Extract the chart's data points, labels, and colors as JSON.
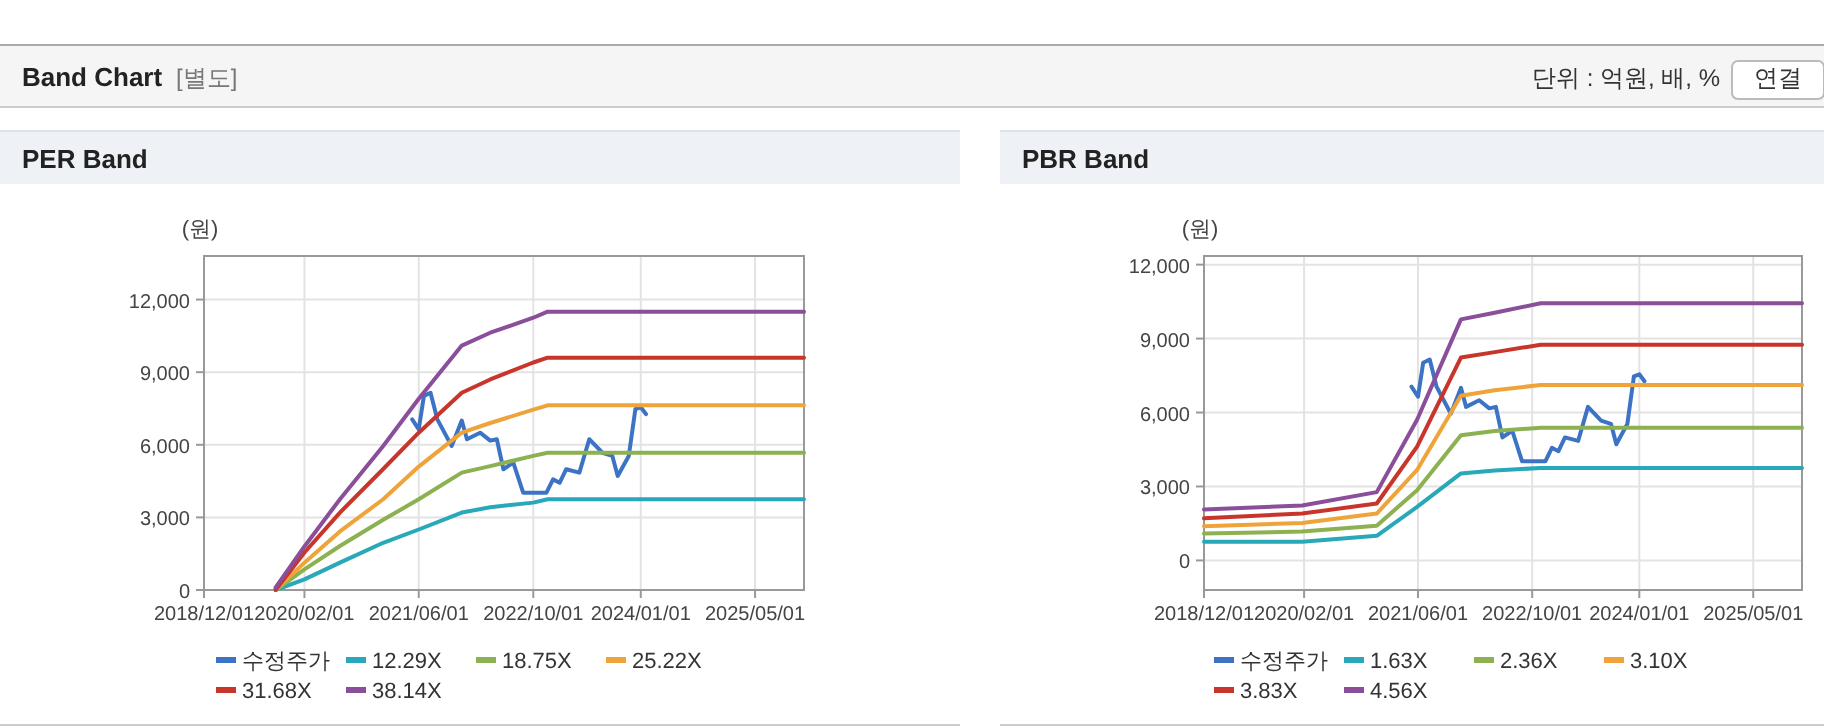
{
  "chart_data": [
    {
      "type": "line",
      "title": "PER Band",
      "ylabel": "(원)",
      "annotations": [
        "Band Chart",
        "[별도]",
        "단위 : 억원, 배, %",
        "연결"
      ],
      "legend": "bottom",
      "grid": true,
      "marker": "none",
      "line_style": "solid",
      "xlim": [
        "2018-12-01",
        "2025-11-25"
      ],
      "xticks": [
        {
          "value": "2018-12-01",
          "label": "2018/12/01"
        },
        {
          "value": "2020-02-01",
          "label": "2020/02/01"
        },
        {
          "value": "2021-06-01",
          "label": "2021/06/01"
        },
        {
          "value": "2022-10-01",
          "label": "2022/10/01"
        },
        {
          "value": "2024-01-01",
          "label": "2024/01/01"
        },
        {
          "value": "2025-05-01",
          "label": "2025/05/01"
        }
      ],
      "ylim": [
        0,
        13800
      ],
      "yticks": [
        {
          "value": 0,
          "label": "0"
        },
        {
          "value": 3000,
          "label": "3,000"
        },
        {
          "value": 6000,
          "label": "6,000"
        },
        {
          "value": 9000,
          "label": "9,000"
        },
        {
          "value": 12000,
          "label": "12,000"
        }
      ],
      "series": [
        {
          "name": "수정주가",
          "color": "#3d73c5",
          "x": [
            "2021-05-04",
            "2021-06-01",
            "2021-06-23",
            "2021-07-21",
            "2021-08-19",
            "2021-10-19",
            "2021-12-01",
            "2021-12-23",
            "2022-02-17",
            "2022-04-01",
            "2022-04-29",
            "2022-05-27",
            "2022-07-08",
            "2022-08-19",
            "2022-09-16",
            "2022-11-26",
            "2022-12-24",
            "2023-01-21",
            "2023-02-18",
            "2023-04-15",
            "2023-05-27",
            "2023-07-22",
            "2023-09-02",
            "2023-09-25",
            "2023-11-11",
            "2023-12-09",
            "2024-01-01",
            "2024-01-23"
          ],
          "values": [
            7050,
            6640,
            8020,
            8150,
            7050,
            5950,
            7000,
            6230,
            6500,
            6170,
            6230,
            4990,
            5260,
            4020,
            4020,
            4020,
            4570,
            4430,
            4990,
            4850,
            6230,
            5670,
            5540,
            4710,
            5540,
            7470,
            7550,
            7270
          ]
        },
        {
          "name": "12.29X",
          "color": "#28a8b8",
          "x": [
            "2019-10-01",
            "2020-02-01",
            "2020-07-01",
            "2021-01-01",
            "2021-06-01",
            "2021-12-01",
            "2022-04-01",
            "2022-10-01",
            "2022-12-01",
            "2025-11-25"
          ],
          "values": [
            0,
            440,
            1130,
            1950,
            2500,
            3200,
            3420,
            3610,
            3750,
            3750
          ]
        },
        {
          "name": "18.75X",
          "color": "#8bb150",
          "x": [
            "2019-10-01",
            "2020-02-01",
            "2020-07-01",
            "2021-01-01",
            "2021-06-01",
            "2021-12-01",
            "2022-04-01",
            "2022-10-01",
            "2022-12-01",
            "2025-11-25"
          ],
          "values": [
            0,
            850,
            1820,
            2900,
            3750,
            4850,
            5120,
            5540,
            5670,
            5670
          ]
        },
        {
          "name": "25.22X",
          "color": "#eea43a",
          "x": [
            "2019-10-01",
            "2020-02-01",
            "2020-07-01",
            "2021-01-01",
            "2021-06-01",
            "2021-12-01",
            "2022-04-01",
            "2022-10-01",
            "2022-12-01",
            "2025-11-25"
          ],
          "values": [
            0,
            1130,
            2420,
            3750,
            5100,
            6500,
            6900,
            7450,
            7630,
            7630
          ]
        },
        {
          "name": "31.68X",
          "color": "#c8352a",
          "x": [
            "2019-10-01",
            "2020-02-01",
            "2020-07-01",
            "2021-01-01",
            "2021-06-01",
            "2021-12-01",
            "2022-04-01",
            "2022-10-01",
            "2022-12-01",
            "2025-11-25"
          ],
          "values": [
            0,
            1550,
            3200,
            5000,
            6500,
            8150,
            8700,
            9400,
            9600,
            9600
          ]
        },
        {
          "name": "38.14X",
          "color": "#8a4e9a",
          "x": [
            "2019-10-01",
            "2020-02-01",
            "2020-07-01",
            "2021-01-01",
            "2021-06-01",
            "2021-12-01",
            "2022-04-01",
            "2022-10-01",
            "2022-12-01",
            "2025-11-25"
          ],
          "values": [
            100,
            1800,
            3750,
            5950,
            7900,
            10100,
            10630,
            11250,
            11500,
            11500
          ]
        }
      ]
    },
    {
      "type": "line",
      "title": "PBR Band",
      "ylabel": "(원)",
      "legend": "bottom",
      "grid": true,
      "marker": "none",
      "line_style": "solid",
      "xlim": [
        "2018-12-01",
        "2025-11-25"
      ],
      "xticks": [
        {
          "value": "2018-12-01",
          "label": "2018/12/01"
        },
        {
          "value": "2020-02-01",
          "label": "2020/02/01"
        },
        {
          "value": "2021-06-01",
          "label": "2021/06/01"
        },
        {
          "value": "2022-10-01",
          "label": "2022/10/01"
        },
        {
          "value": "2024-01-01",
          "label": "2024/01/01"
        },
        {
          "value": "2025-05-01",
          "label": "2025/05/01"
        }
      ],
      "ylim": [
        -1200,
        12350
      ],
      "yticks": [
        {
          "value": 0,
          "label": "0"
        },
        {
          "value": 3000,
          "label": "3,000"
        },
        {
          "value": 6000,
          "label": "6,000"
        },
        {
          "value": 9000,
          "label": "9,000"
        },
        {
          "value": 12000,
          "label": "12,000"
        }
      ],
      "series": [
        {
          "name": "수정주가",
          "color": "#3d73c5",
          "x": [
            "2021-05-04",
            "2021-06-01",
            "2021-06-23",
            "2021-07-21",
            "2021-08-19",
            "2021-10-19",
            "2021-12-01",
            "2021-12-23",
            "2022-02-17",
            "2022-04-01",
            "2022-04-29",
            "2022-05-27",
            "2022-07-08",
            "2022-08-19",
            "2022-09-16",
            "2022-11-26",
            "2022-12-24",
            "2023-01-21",
            "2023-02-18",
            "2023-04-15",
            "2023-05-27",
            "2023-07-22",
            "2023-09-02",
            "2023-09-25",
            "2023-11-11",
            "2023-12-09",
            "2024-01-01",
            "2024-01-23"
          ],
          "values": [
            7050,
            6640,
            8020,
            8150,
            7050,
            5950,
            7000,
            6230,
            6500,
            6170,
            6230,
            4990,
            5260,
            4020,
            4020,
            4020,
            4570,
            4430,
            4990,
            4850,
            6230,
            5670,
            5540,
            4710,
            5540,
            7470,
            7550,
            7270
          ]
        },
        {
          "name": "1.63X",
          "color": "#28a8b8",
          "x": [
            "2018-12-01",
            "2020-01-24",
            "2020-12-07",
            "2021-05-28",
            "2021-12-01",
            "2022-04-24",
            "2022-11-06",
            "2025-11-25"
          ],
          "values": [
            760,
            760,
            1000,
            2170,
            3530,
            3650,
            3750,
            3750
          ]
        },
        {
          "name": "2.36X",
          "color": "#8bb150",
          "x": [
            "2018-12-01",
            "2020-01-24",
            "2020-12-07",
            "2021-05-28",
            "2021-12-01",
            "2022-04-24",
            "2022-11-06",
            "2025-11-25"
          ],
          "values": [
            1090,
            1170,
            1410,
            2850,
            5080,
            5250,
            5380,
            5380
          ]
        },
        {
          "name": "3.10X",
          "color": "#eea43a",
          "x": [
            "2018-12-01",
            "2020-01-24",
            "2020-12-07",
            "2021-05-28",
            "2021-12-01",
            "2022-04-24",
            "2022-11-06",
            "2025-11-25"
          ],
          "values": [
            1390,
            1520,
            1900,
            3670,
            6680,
            6900,
            7120,
            7120
          ]
        },
        {
          "name": "3.83X",
          "color": "#c8352a",
          "x": [
            "2018-12-01",
            "2020-01-24",
            "2020-12-07",
            "2021-05-28",
            "2021-12-01",
            "2022-04-24",
            "2022-11-06",
            "2025-11-25"
          ],
          "values": [
            1710,
            1900,
            2310,
            4620,
            8230,
            8450,
            8750,
            8750
          ]
        },
        {
          "name": "4.56X",
          "color": "#8a4e9a",
          "x": [
            "2018-12-01",
            "2020-01-24",
            "2020-12-07",
            "2021-05-28",
            "2021-12-01",
            "2022-04-24",
            "2022-11-06",
            "2025-11-25"
          ],
          "values": [
            2070,
            2230,
            2770,
            5710,
            9780,
            10050,
            10430,
            10430
          ]
        }
      ]
    }
  ]
}
